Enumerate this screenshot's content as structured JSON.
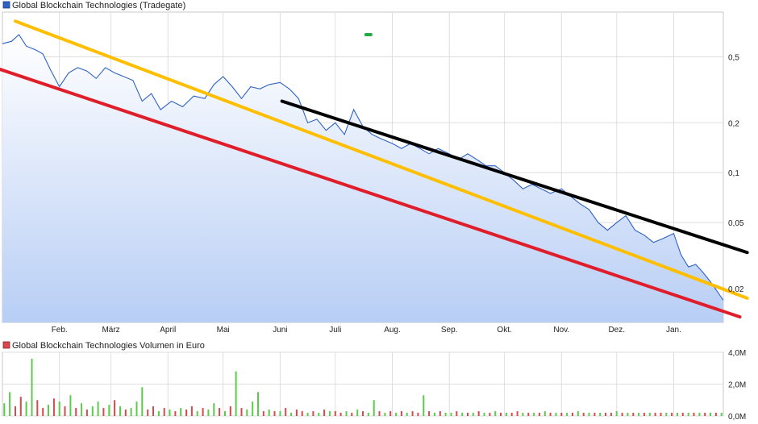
{
  "chart_data": [
    {
      "type": "area",
      "title": "Global Blockchain Technologies (Tradegate)",
      "series_color": "#2e62c4",
      "y_scale": "log",
      "y_ticks": [
        "0,5",
        "0,2",
        "0,1",
        "0,05",
        "0,02"
      ],
      "y_tick_values": [
        0.5,
        0.2,
        0.1,
        0.05,
        0.02
      ],
      "ylim": [
        0.0125,
        0.93
      ],
      "x_ticks": [
        "Feb.",
        "März",
        "April",
        "Mai",
        "Juni",
        "Juli",
        "Aug.",
        "Sep.",
        "Okt.",
        "Nov.",
        "Dez.",
        "Jan."
      ],
      "x_tick_dates": [
        "2018-02-01",
        "2018-03-01",
        "2018-04-01",
        "2018-05-01",
        "2018-06-01",
        "2018-07-01",
        "2018-08-01",
        "2018-09-01",
        "2018-10-01",
        "2018-11-01",
        "2018-12-01",
        "2019-01-01"
      ],
      "xlim": [
        "2018-01-01",
        "2019-01-28"
      ],
      "grid": true,
      "series": [
        {
          "x": [
            "2018-01-01",
            "2018-01-06",
            "2018-01-10",
            "2018-01-14",
            "2018-01-19",
            "2018-01-23",
            "2018-01-27",
            "2018-02-01",
            "2018-02-06",
            "2018-02-11",
            "2018-02-16",
            "2018-02-21",
            "2018-02-26",
            "2018-03-03",
            "2018-03-08",
            "2018-03-13",
            "2018-03-18",
            "2018-03-23",
            "2018-03-28",
            "2018-04-03",
            "2018-04-09",
            "2018-04-15",
            "2018-04-21",
            "2018-04-26",
            "2018-05-01",
            "2018-05-06",
            "2018-05-11",
            "2018-05-16",
            "2018-05-21",
            "2018-05-26",
            "2018-06-01",
            "2018-06-06",
            "2018-06-11",
            "2018-06-16",
            "2018-06-21",
            "2018-06-26",
            "2018-07-01",
            "2018-07-06",
            "2018-07-11",
            "2018-07-16",
            "2018-07-21",
            "2018-07-26",
            "2018-08-01",
            "2018-08-06",
            "2018-08-11",
            "2018-08-16",
            "2018-08-21",
            "2018-08-26",
            "2018-09-01",
            "2018-09-06",
            "2018-09-11",
            "2018-09-16",
            "2018-09-21",
            "2018-09-26",
            "2018-10-01",
            "2018-10-06",
            "2018-10-11",
            "2018-10-16",
            "2018-10-21",
            "2018-10-26",
            "2018-11-01",
            "2018-11-06",
            "2018-11-11",
            "2018-11-16",
            "2018-11-21",
            "2018-11-26",
            "2018-12-01",
            "2018-12-06",
            "2018-12-11",
            "2018-12-16",
            "2018-12-21",
            "2018-12-26",
            "2019-01-01",
            "2019-01-05",
            "2019-01-09",
            "2019-01-13",
            "2019-01-17",
            "2019-01-21",
            "2019-01-25",
            "2019-01-28"
          ],
          "values": [
            0.6,
            0.62,
            0.68,
            0.58,
            0.55,
            0.52,
            0.42,
            0.33,
            0.4,
            0.43,
            0.41,
            0.37,
            0.43,
            0.4,
            0.38,
            0.36,
            0.27,
            0.3,
            0.24,
            0.27,
            0.25,
            0.29,
            0.28,
            0.34,
            0.38,
            0.33,
            0.28,
            0.33,
            0.32,
            0.34,
            0.35,
            0.32,
            0.28,
            0.2,
            0.21,
            0.18,
            0.2,
            0.17,
            0.24,
            0.19,
            0.17,
            0.16,
            0.15,
            0.14,
            0.15,
            0.14,
            0.13,
            0.14,
            0.13,
            0.12,
            0.13,
            0.12,
            0.11,
            0.11,
            0.1,
            0.09,
            0.08,
            0.085,
            0.08,
            0.075,
            0.08,
            0.072,
            0.065,
            0.06,
            0.05,
            0.045,
            0.05,
            0.055,
            0.045,
            0.042,
            0.038,
            0.04,
            0.043,
            0.032,
            0.027,
            0.028,
            0.025,
            0.022,
            0.019,
            0.017
          ]
        }
      ],
      "trendlines": [
        {
          "color": "#ffbf00",
          "x": [
            "2018-01-08",
            "2019-02-10"
          ],
          "y": [
            0.82,
            0.0175
          ]
        },
        {
          "color": "#e01e2a",
          "x": [
            "2017-12-28",
            "2019-02-06"
          ],
          "y": [
            0.43,
            0.0135
          ]
        },
        {
          "color": "#000000",
          "x": [
            "2018-06-02",
            "2019-02-10"
          ],
          "y": [
            0.27,
            0.033
          ]
        }
      ],
      "marker": {
        "color": "#22aa44",
        "x": "2018-07-19",
        "y": 0.68
      }
    },
    {
      "type": "bar",
      "title": "Global Blockchain Technologies Volumen in Euro",
      "y_ticks": [
        "4,0M",
        "2,0M",
        "0,0M"
      ],
      "y_tick_values": [
        4.0,
        2.0,
        0.0
      ],
      "ylim": [
        0,
        4.0
      ],
      "grid": true,
      "colors": {
        "up": "#5acb4a",
        "down": "#d7494c"
      },
      "series": [
        {
          "x": [
            "2018-01-02",
            "2018-01-05",
            "2018-01-08",
            "2018-01-11",
            "2018-01-14",
            "2018-01-17",
            "2018-01-20",
            "2018-01-23",
            "2018-01-26",
            "2018-01-29",
            "2018-02-01",
            "2018-02-04",
            "2018-02-07",
            "2018-02-10",
            "2018-02-13",
            "2018-02-16",
            "2018-02-19",
            "2018-02-22",
            "2018-02-25",
            "2018-02-28",
            "2018-03-03",
            "2018-03-06",
            "2018-03-09",
            "2018-03-12",
            "2018-03-15",
            "2018-03-18",
            "2018-03-21",
            "2018-03-24",
            "2018-03-27",
            "2018-03-30",
            "2018-04-02",
            "2018-04-05",
            "2018-04-08",
            "2018-04-11",
            "2018-04-14",
            "2018-04-17",
            "2018-04-20",
            "2018-04-23",
            "2018-04-26",
            "2018-04-29",
            "2018-05-02",
            "2018-05-05",
            "2018-05-08",
            "2018-05-11",
            "2018-05-14",
            "2018-05-17",
            "2018-05-20",
            "2018-05-23",
            "2018-05-26",
            "2018-05-29",
            "2018-06-01",
            "2018-06-04",
            "2018-06-07",
            "2018-06-10",
            "2018-06-13",
            "2018-06-16",
            "2018-06-19",
            "2018-06-22",
            "2018-06-25",
            "2018-06-28",
            "2018-07-01",
            "2018-07-04",
            "2018-07-07",
            "2018-07-10",
            "2018-07-13",
            "2018-07-16",
            "2018-07-19",
            "2018-07-22",
            "2018-07-25",
            "2018-07-28",
            "2018-07-31",
            "2018-08-03",
            "2018-08-06",
            "2018-08-09",
            "2018-08-12",
            "2018-08-15",
            "2018-08-18",
            "2018-08-21",
            "2018-08-24",
            "2018-08-27",
            "2018-08-30",
            "2018-09-02",
            "2018-09-05",
            "2018-09-08",
            "2018-09-11",
            "2018-09-14",
            "2018-09-17",
            "2018-09-20",
            "2018-09-23",
            "2018-09-26",
            "2018-09-29",
            "2018-10-02",
            "2018-10-05",
            "2018-10-08",
            "2018-10-11",
            "2018-10-14",
            "2018-10-17",
            "2018-10-20",
            "2018-10-23",
            "2018-10-26",
            "2018-10-29",
            "2018-11-01",
            "2018-11-04",
            "2018-11-07",
            "2018-11-10",
            "2018-11-13",
            "2018-11-16",
            "2018-11-19",
            "2018-11-22",
            "2018-11-25",
            "2018-11-28",
            "2018-12-01",
            "2018-12-04",
            "2018-12-07",
            "2018-12-10",
            "2018-12-13",
            "2018-12-16",
            "2018-12-19",
            "2018-12-22",
            "2018-12-25",
            "2018-12-28",
            "2018-12-31",
            "2019-01-03",
            "2019-01-06",
            "2019-01-09",
            "2019-01-12",
            "2019-01-15",
            "2019-01-18",
            "2019-01-21",
            "2019-01-24",
            "2019-01-27"
          ],
          "values": [
            0.8,
            1.5,
            0.6,
            1.2,
            0.9,
            3.6,
            1.0,
            0.5,
            0.7,
            1.1,
            0.9,
            0.6,
            1.3,
            0.5,
            0.8,
            0.4,
            0.6,
            0.9,
            0.5,
            0.7,
            1.0,
            0.6,
            0.4,
            0.5,
            0.9,
            1.8,
            0.4,
            0.6,
            0.3,
            0.5,
            0.4,
            0.3,
            0.5,
            0.4,
            0.6,
            0.3,
            0.5,
            0.4,
            0.8,
            0.5,
            0.3,
            0.6,
            2.8,
            0.5,
            0.4,
            0.9,
            1.5,
            0.3,
            0.4,
            0.3,
            0.3,
            0.5,
            0.2,
            0.4,
            0.3,
            0.2,
            0.3,
            0.2,
            0.4,
            0.3,
            0.3,
            0.2,
            0.3,
            0.2,
            0.4,
            0.3,
            0.2,
            1.0,
            0.3,
            0.2,
            0.3,
            0.2,
            0.3,
            0.2,
            0.3,
            0.2,
            1.3,
            0.3,
            0.2,
            0.3,
            0.2,
            0.2,
            0.3,
            0.2,
            0.2,
            0.2,
            0.3,
            0.2,
            0.2,
            0.3,
            0.2,
            0.2,
            0.2,
            0.3,
            0.2,
            0.2,
            0.2,
            0.2,
            0.3,
            0.2,
            0.2,
            0.2,
            0.2,
            0.2,
            0.3,
            0.2,
            0.2,
            0.2,
            0.2,
            0.2,
            0.2,
            0.3,
            0.2,
            0.2,
            0.2,
            0.2,
            0.2,
            0.2,
            0.2,
            0.2,
            0.2,
            0.2,
            0.2,
            0.2,
            0.2,
            0.2,
            0.2,
            0.2,
            0.2,
            0.2,
            0.2
          ],
          "up": [
            1,
            1,
            0,
            0,
            1,
            1,
            0,
            0,
            1,
            0,
            1,
            0,
            1,
            0,
            1,
            0,
            1,
            1,
            0,
            1,
            0,
            1,
            0,
            1,
            1,
            1,
            0,
            0,
            1,
            0,
            1,
            0,
            1,
            0,
            0,
            1,
            0,
            1,
            1,
            0,
            1,
            0,
            1,
            0,
            1,
            1,
            1,
            0,
            1,
            0,
            1,
            0,
            1,
            0,
            0,
            1,
            0,
            1,
            0,
            1,
            0,
            0,
            1,
            0,
            1,
            0,
            1,
            1,
            0,
            1,
            0,
            1,
            0,
            1,
            0,
            0,
            1,
            0,
            1,
            0,
            1,
            1,
            0,
            1,
            0,
            1,
            0,
            1,
            0,
            1,
            0,
            1,
            0,
            0,
            1,
            0,
            1,
            0,
            1,
            0,
            1,
            0,
            1,
            0,
            1,
            0,
            1,
            0,
            1,
            0,
            0,
            1,
            0,
            1,
            0,
            1,
            0,
            1,
            0,
            0,
            1,
            0,
            1,
            0,
            1,
            0,
            1,
            0,
            1,
            0,
            1
          ]
        }
      ]
    }
  ]
}
